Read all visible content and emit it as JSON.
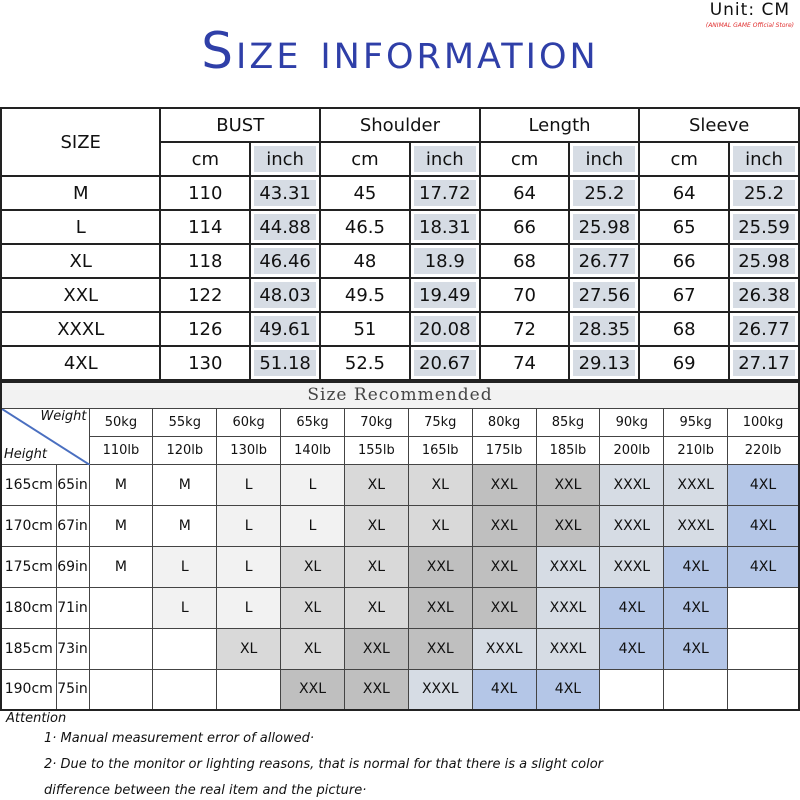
{
  "header": {
    "title": "Size information",
    "unit": "Unit: CM",
    "store": "(ANIMAL GAME Official Store)",
    "watermark": "ANIMAL GAME Official Store"
  },
  "size_table": {
    "size_label": "SIZE",
    "groups": [
      "BUST",
      "Shoulder",
      "Length",
      "Sleeve"
    ],
    "sub": [
      "cm",
      "inch"
    ],
    "rows": [
      [
        "M",
        "110",
        "43.31",
        "45",
        "17.72",
        "64",
        "25.2",
        "64",
        "25.2"
      ],
      [
        "L",
        "114",
        "44.88",
        "46.5",
        "18.31",
        "66",
        "25.98",
        "65",
        "25.59"
      ],
      [
        "XL",
        "118",
        "46.46",
        "48",
        "18.9",
        "68",
        "26.77",
        "66",
        "25.98"
      ],
      [
        "XXL",
        "122",
        "48.03",
        "49.5",
        "19.49",
        "70",
        "27.56",
        "67",
        "26.38"
      ],
      [
        "XXXL",
        "126",
        "49.61",
        "51",
        "20.08",
        "72",
        "28.35",
        "68",
        "26.77"
      ],
      [
        "4XL",
        "130",
        "51.18",
        "52.5",
        "20.67",
        "74",
        "29.13",
        "69",
        "27.17"
      ]
    ]
  },
  "recommend": {
    "title": "Size Recommended",
    "weight_label": "Weight",
    "height_label": "Height",
    "kg": [
      "50kg",
      "55kg",
      "60kg",
      "65kg",
      "70kg",
      "75kg",
      "80kg",
      "85kg",
      "90kg",
      "95kg",
      "100kg"
    ],
    "lb": [
      "110lb",
      "120lb",
      "130lb",
      "140lb",
      "155lb",
      "165lb",
      "175lb",
      "185lb",
      "200lb",
      "210lb",
      "220lb"
    ],
    "rows": [
      {
        "cm": "165cm",
        "in": "65in",
        "sizes": [
          "M",
          "M",
          "L",
          "L",
          "XL",
          "XL",
          "XXL",
          "XXL",
          "XXXL",
          "XXXL",
          "4XL"
        ]
      },
      {
        "cm": "170cm",
        "in": "67in",
        "sizes": [
          "M",
          "M",
          "L",
          "L",
          "XL",
          "XL",
          "XXL",
          "XXL",
          "XXXL",
          "XXXL",
          "4XL"
        ]
      },
      {
        "cm": "175cm",
        "in": "69in",
        "sizes": [
          "M",
          "L",
          "L",
          "XL",
          "XL",
          "XXL",
          "XXL",
          "XXXL",
          "XXXL",
          "4XL",
          "4XL"
        ]
      },
      {
        "cm": "180cm",
        "in": "71in",
        "sizes": [
          "",
          "L",
          "L",
          "XL",
          "XL",
          "XXL",
          "XXL",
          "XXXL",
          "4XL",
          "4XL",
          ""
        ]
      },
      {
        "cm": "185cm",
        "in": "73in",
        "sizes": [
          "",
          "",
          "XL",
          "XL",
          "XXL",
          "XXL",
          "XXXL",
          "XXXL",
          "4XL",
          "4XL",
          ""
        ]
      },
      {
        "cm": "190cm",
        "in": "75in",
        "sizes": [
          "",
          "",
          "",
          "XXL",
          "XXL",
          "XXXL",
          "4XL",
          "4XL",
          "",
          "",
          ""
        ]
      }
    ],
    "colors": {
      "M": "#ffffff",
      "L": "#f2f2f2",
      "XL": "#d9d9d9",
      "XXL": "#bfbfbf",
      "XXXL": "#d6dce4",
      "4XL": "#b4c6e7"
    }
  },
  "notes": {
    "title": "Attention",
    "items": [
      "1· Manual measurement error of allowed·",
      "2·  Due to the monitor or lighting reasons, that is normal for that there is a slight color",
      "difference between the real item and the picture·"
    ]
  }
}
